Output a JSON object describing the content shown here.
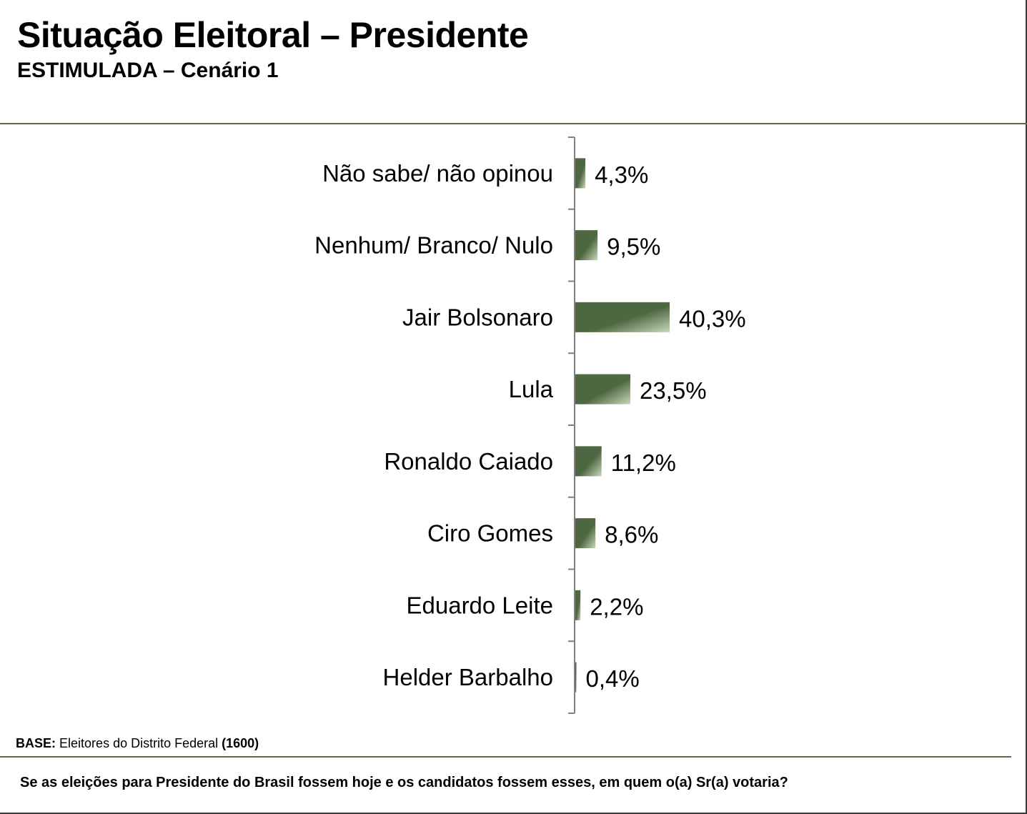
{
  "header": {
    "title": "Situação Eleitoral – Presidente",
    "subtitle": "ESTIMULADA – Cenário 1"
  },
  "footer": {
    "base_label": "BASE:",
    "base_text": "Eleitores do Distrito Federal",
    "base_count": "(1600)",
    "question": "Se as eleições para Presidente do Brasil fossem hoje e os candidatos fossem esses, em quem o(a) Sr(a) votaria?"
  },
  "colors": {
    "bar_dark": "#4d6741",
    "bar_light": "#c9d7bd",
    "rule": "#5a6e46",
    "axis": "#7f7f7f"
  },
  "chart_data": {
    "type": "bar",
    "orientation": "horizontal",
    "title": "",
    "xlabel": "",
    "ylabel": "",
    "grid": false,
    "legend": "none",
    "xlim": [
      0,
      40.3
    ],
    "categories": [
      "Não sabe/ não opinou",
      "Nenhum/ Branco/ Nulo",
      "Jair Bolsonaro",
      "Lula",
      "Ronaldo Caiado",
      "Ciro Gomes",
      "Eduardo Leite",
      "Helder Barbalho"
    ],
    "values": [
      4.3,
      9.5,
      40.3,
      23.5,
      11.2,
      8.6,
      2.2,
      0.4
    ],
    "value_labels": [
      "4,3%",
      "9,5%",
      "40,3%",
      "23,5%",
      "11,2%",
      "8,6%",
      "2,2%",
      "0,4%"
    ]
  }
}
